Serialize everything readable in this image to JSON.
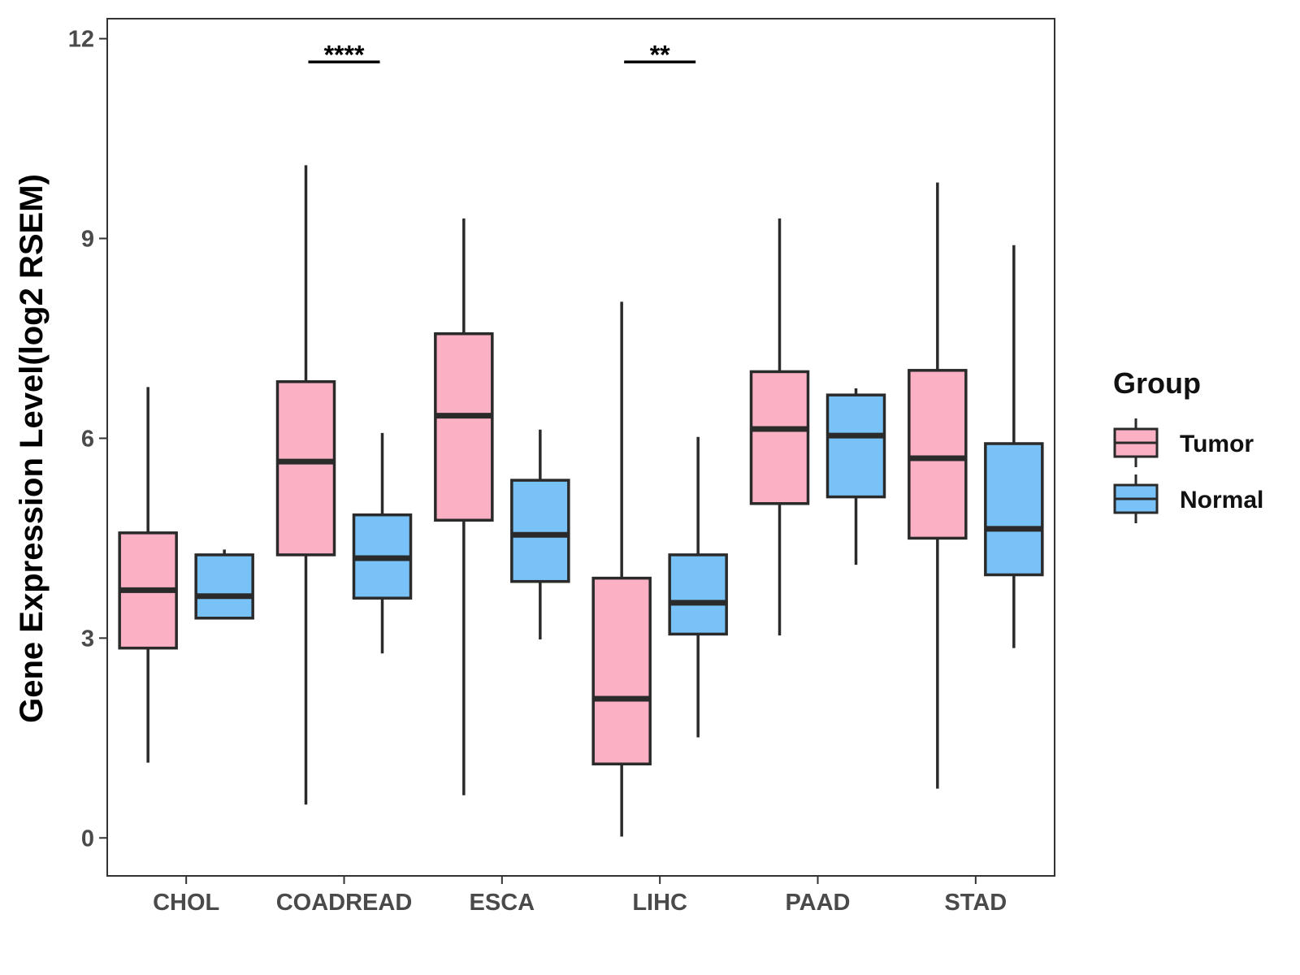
{
  "chart_data": {
    "type": "boxplot",
    "title": "",
    "xlabel": "",
    "ylabel": "Gene Expression Level(log2 RSEM)",
    "ylim": [
      -0.57,
      12.3
    ],
    "yticks": [
      0,
      3,
      6,
      9,
      12
    ],
    "ytick_labels": [
      "0",
      "3",
      "6",
      "9",
      "12"
    ],
    "categories": [
      "CHOL",
      "COADREAD",
      "ESCA",
      "LIHC",
      "PAAD",
      "STAD"
    ],
    "legend": {
      "title": "Group",
      "placement": "right",
      "entries": [
        {
          "name": "Tumor",
          "color": "#FBB1C3"
        },
        {
          "name": "Normal",
          "color": "#78C2F8"
        }
      ]
    },
    "series": [
      {
        "name": "Tumor",
        "color": "#FBB1C3",
        "boxes": [
          {
            "category": "CHOL",
            "min": 1.13,
            "q1": 2.85,
            "median": 3.72,
            "q3": 4.58,
            "max": 6.77
          },
          {
            "category": "COADREAD",
            "min": 0.5,
            "q1": 4.25,
            "median": 5.65,
            "q3": 6.85,
            "max": 10.1
          },
          {
            "category": "ESCA",
            "min": 0.64,
            "q1": 4.77,
            "median": 6.34,
            "q3": 7.57,
            "max": 9.3
          },
          {
            "category": "LIHC",
            "min": 0.02,
            "q1": 1.11,
            "median": 2.09,
            "q3": 3.9,
            "max": 8.05
          },
          {
            "category": "PAAD",
            "min": 3.04,
            "q1": 5.02,
            "median": 6.14,
            "q3": 7.0,
            "max": 9.3
          },
          {
            "category": "STAD",
            "min": 0.74,
            "q1": 4.5,
            "median": 5.7,
            "q3": 7.02,
            "max": 9.84
          }
        ]
      },
      {
        "name": "Normal",
        "color": "#78C2F8",
        "boxes": [
          {
            "category": "CHOL",
            "min": 3.3,
            "q1": 3.3,
            "median": 3.63,
            "q3": 4.25,
            "max": 4.33
          },
          {
            "category": "COADREAD",
            "min": 2.77,
            "q1": 3.6,
            "median": 4.2,
            "q3": 4.85,
            "max": 6.08
          },
          {
            "category": "ESCA",
            "min": 2.98,
            "q1": 3.85,
            "median": 4.55,
            "q3": 5.37,
            "max": 6.13
          },
          {
            "category": "LIHC",
            "min": 1.51,
            "q1": 3.06,
            "median": 3.53,
            "q3": 4.25,
            "max": 6.02
          },
          {
            "category": "PAAD",
            "min": 4.1,
            "q1": 5.12,
            "median": 6.04,
            "q3": 6.65,
            "max": 6.75
          },
          {
            "category": "STAD",
            "min": 2.85,
            "q1": 3.95,
            "median": 4.64,
            "q3": 5.92,
            "max": 8.9
          }
        ]
      }
    ],
    "annotations": [
      {
        "category": "COADREAD",
        "label": "****",
        "y": 11.65
      },
      {
        "category": "LIHC",
        "label": "**",
        "y": 11.65
      }
    ]
  }
}
